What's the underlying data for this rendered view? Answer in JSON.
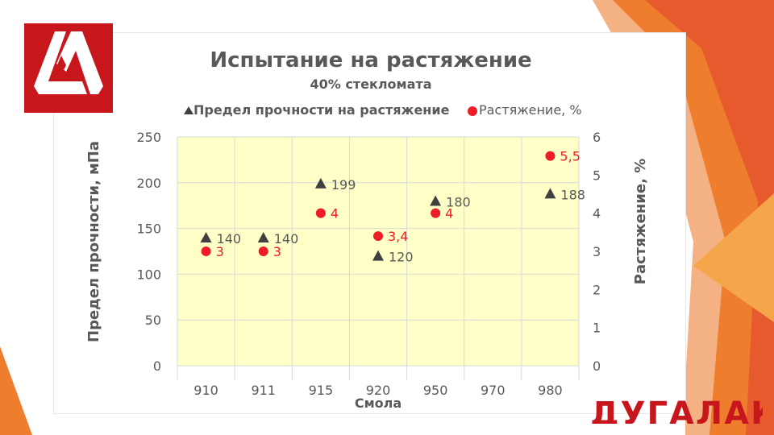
{
  "colors": {
    "accent_orange": "#ee7d2d",
    "accent_red": "#c8161d",
    "plot_bg": "#ffffc8",
    "grid": "#d9d9d9",
    "triangle_series": "#404040",
    "circle_series": "#ee1c25"
  },
  "logo": {
    "text": "ДУГАЛАК",
    "icon": "dm-monogram-logo"
  },
  "bottom_logo": {
    "text": "ДУГАЛАК"
  },
  "chart_data": {
    "type": "scatter",
    "title": "Испытание на растяжение",
    "subtitle": "40% стекломата",
    "xlabel": "Смола",
    "ylabel_left": "Предел прочности, мПа",
    "ylabel_right": "Растяжение, %",
    "categories": [
      "910",
      "911",
      "915",
      "920",
      "950",
      "970",
      "980"
    ],
    "ylim_left": [
      0,
      250
    ],
    "yticks_left": [
      "0",
      "50",
      "100",
      "150",
      "200",
      "250"
    ],
    "ylim_right": [
      0,
      6
    ],
    "yticks_right": [
      "0",
      "1",
      "2",
      "3",
      "4",
      "5",
      "6"
    ],
    "grid": true,
    "legend_position": "top",
    "series": [
      {
        "name": "Предел прочности на растяжение",
        "marker": "triangle",
        "axis": "left",
        "points": [
          {
            "x": "910",
            "y": 140,
            "label": "140"
          },
          {
            "x": "911",
            "y": 140,
            "label": "140"
          },
          {
            "x": "915",
            "y": 199,
            "label": "199"
          },
          {
            "x": "920",
            "y": 120,
            "label": "120"
          },
          {
            "x": "950",
            "y": 180,
            "label": "180"
          },
          {
            "x": "980",
            "y": 188,
            "label": "188"
          }
        ]
      },
      {
        "name": "Растяжение, %",
        "marker": "circle",
        "axis": "right",
        "points": [
          {
            "x": "910",
            "y": 3,
            "label": "3"
          },
          {
            "x": "911",
            "y": 3,
            "label": "3"
          },
          {
            "x": "915",
            "y": 4,
            "label": "4"
          },
          {
            "x": "920",
            "y": 3.4,
            "label": "3,4"
          },
          {
            "x": "950",
            "y": 4,
            "label": "4"
          },
          {
            "x": "980",
            "y": 5.5,
            "label": "5,5"
          }
        ]
      }
    ]
  }
}
